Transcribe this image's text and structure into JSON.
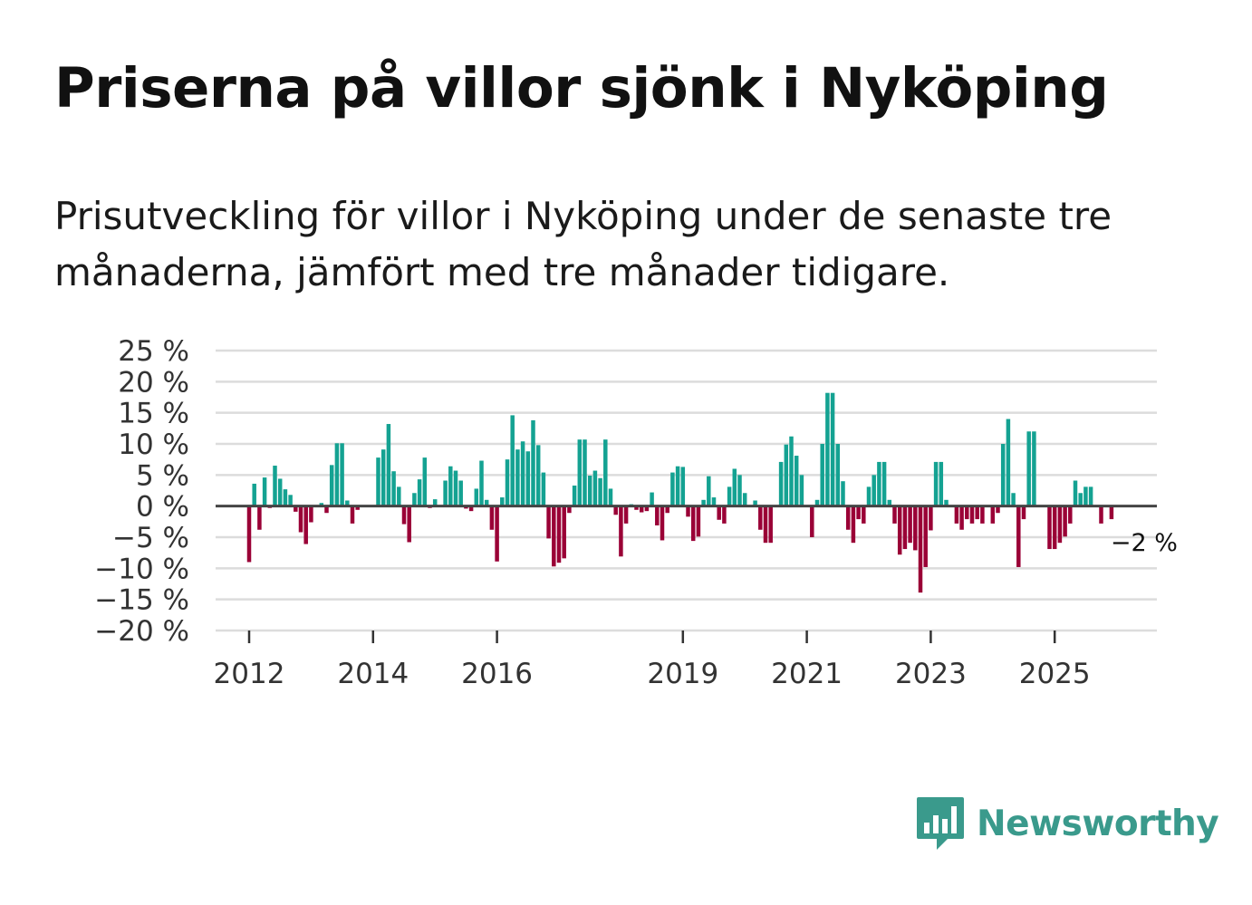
{
  "title": "Priserna på villor sjönk i Nyköping",
  "subtitle": "Prisutveckling för villor i Nyköping under de senaste tre månaderna, jämfört med tre månader tidigare.",
  "brand": {
    "name": "Newsworthy",
    "logo_icon": "bar-chart-speech-bubble-icon"
  },
  "colors": {
    "positive": "#14a292",
    "negative": "#9a0036",
    "grid": "#dcdcdc",
    "zero_line": "#444444"
  },
  "chart_data": {
    "type": "bar",
    "title": "Priserna på villor sjönk i Nyköping",
    "xlabel": "",
    "ylabel": "",
    "ylim": [
      -20,
      25
    ],
    "y_ticks": [
      25,
      20,
      15,
      10,
      5,
      0,
      -5,
      -10,
      -15,
      -20
    ],
    "y_tick_labels": [
      "25 %",
      "20 %",
      "15 %",
      "10 %",
      "5 %",
      "0 %",
      "−5 %",
      "−10 %",
      "−15 %",
      "−20 %"
    ],
    "x_ticks": [
      2012,
      2014,
      2016,
      2019,
      2021,
      2023,
      2025
    ],
    "x_tick_labels": [
      "2012",
      "2014",
      "2016",
      "2019",
      "2021",
      "2023",
      "2025"
    ],
    "start": "2011-05",
    "frequency": "monthly",
    "values": [
      null,
      null,
      null,
      null,
      null,
      null,
      null,
      null,
      -9,
      3.6,
      -3.8,
      4.6,
      -0.3,
      6.5,
      4.4,
      2.7,
      1.8,
      -0.9,
      -4.2,
      -6.1,
      -2.6,
      0,
      0.5,
      -1.1,
      6.6,
      10.1,
      10.1,
      0.9,
      -2.8,
      -0.6,
      0,
      0,
      0,
      7.8,
      9.1,
      13.2,
      5.6,
      3.1,
      -2.9,
      -5.8,
      2.1,
      4.3,
      7.8,
      -0.3,
      1.1,
      0,
      4.1,
      6.4,
      5.7,
      4.1,
      -0.4,
      -0.8,
      2.8,
      7.3,
      1,
      -3.8,
      -8.9,
      1.4,
      7.5,
      14.6,
      9.1,
      10.4,
      8.8,
      13.8,
      9.8,
      5.4,
      -5.2,
      -9.7,
      -9.1,
      -8.4,
      -1.1,
      3.3,
      10.7,
      10.7,
      4.9,
      5.7,
      4.5,
      10.7,
      2.8,
      -1.4,
      -8.1,
      -2.8,
      0.3,
      -0.6,
      -1,
      -0.8,
      2.2,
      -3.1,
      -5.5,
      -1.1,
      5.4,
      6.4,
      6.3,
      -1.7,
      -5.6,
      -4.9,
      1,
      4.8,
      1.4,
      -2.2,
      -2.8,
      3.1,
      6,
      5,
      2.1,
      0,
      0.9,
      -3.8,
      -5.9,
      -5.9,
      0,
      7.1,
      9.9,
      11.2,
      8.1,
      5,
      0,
      -5,
      1,
      10,
      18.2,
      18.2,
      10,
      4,
      -3.8,
      -5.9,
      -2.1,
      -2.8,
      3.1,
      5,
      7.1,
      7.1,
      1,
      -2.8,
      -7.8,
      -6.9,
      -5.9,
      -7.1,
      -13.9,
      -9.8,
      -3.9,
      7.1,
      7.1,
      1,
      0,
      -2.8,
      -3.8,
      -2.1,
      -2.8,
      -2.1,
      -2.8,
      0,
      -2.8,
      -1.1,
      10,
      14,
      2.1,
      -9.8,
      -2.1,
      12,
      12,
      0,
      0,
      -6.9,
      -6.9,
      -5.9,
      -4.9,
      -2.8,
      4.1,
      2.1,
      3.1,
      3.1,
      0,
      -2.8,
      0,
      -2.1
    ],
    "annotation": "−2 %"
  }
}
